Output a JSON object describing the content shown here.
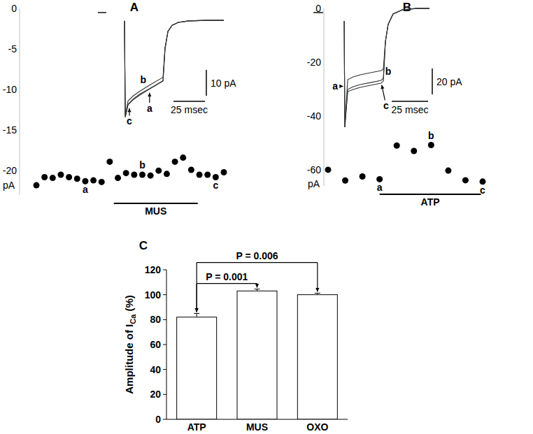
{
  "chart_data": [
    {
      "type": "scatter",
      "title": "A",
      "y_label": "pA",
      "x": [
        0,
        1,
        2,
        3,
        4,
        5,
        6,
        7,
        8,
        9,
        10,
        11,
        12,
        13,
        14,
        15,
        16,
        17,
        18,
        19,
        20,
        21,
        22,
        23
      ],
      "values": [
        -21.8,
        -20.8,
        -20.9,
        -20.5,
        -20.8,
        -21.0,
        -21.3,
        -21.2,
        -21.4,
        -18.9,
        -20.9,
        -20.3,
        -20.5,
        -20.5,
        -20.6,
        -20.0,
        -20.4,
        -18.9,
        -18.4,
        -19.9,
        -20.5,
        -20.5,
        -20.8,
        -20.2
      ],
      "xlim": [
        0,
        23
      ],
      "ylim": [
        -23,
        0
      ],
      "yticks": [
        -20,
        -15,
        -10,
        -5,
        0
      ],
      "tick_labels": "y",
      "grid": false,
      "color": "#000000",
      "marker": "circle",
      "treatment": {
        "label": "MUS",
        "start": 9.5,
        "end": 19.8
      },
      "point_labels": [
        {
          "text": "a",
          "index": 6
        },
        {
          "text": "b",
          "index": 13
        },
        {
          "text": "c",
          "index": 22
        }
      ]
    },
    {
      "type": "line",
      "x": [
        0,
        6.7,
        8,
        21.1,
        21.7,
        23.9,
        27.8,
        33.3,
        40.6,
        50,
        51.7,
        53.3,
        55.6,
        58.9,
        63.9,
        72.2,
        86.1,
        100
      ],
      "xlim": [
        0,
        100
      ],
      "ylim": [
        -44,
        2
      ],
      "tick_labels": false,
      "line_style": "solid",
      "series": [
        {
          "color": "#333333",
          "values": [
            0,
            0,
            null,
            -3.2,
            -40.5,
            -35.7,
            -33.8,
            -31.9,
            -29.7,
            -27,
            -26.5,
            -14,
            -7.3,
            -4.9,
            -3.8,
            -3.2,
            -3.0,
            -3.0
          ]
        },
        {
          "color": "#333333",
          "values": [
            0,
            0,
            null,
            -3.2,
            -40,
            -34.2,
            -32.3,
            -30.4,
            -28.2,
            -25.5,
            -25,
            -13.5,
            -7.3,
            -4.9,
            -3.8,
            -3.2,
            -3.0,
            -3.0
          ]
        },
        {
          "color": "#333333",
          "values": [
            0,
            0,
            null,
            -3.2,
            -40.3,
            -35.5,
            -33.5,
            -31.5,
            -29.5,
            -26.8,
            -26.3,
            -14,
            -7.3,
            -4.9,
            -3.8,
            -3.2,
            -3.0,
            -3.0
          ]
        }
      ],
      "scale_bars": [
        {
          "axis": "y",
          "value": 10,
          "label": "10 pA"
        },
        {
          "axis": "x",
          "value": 25,
          "label": "25 msec"
        }
      ],
      "annotations": [
        {
          "text": "b",
          "x": 36,
          "y": -26,
          "text_x": 36,
          "text_y": -26
        },
        {
          "text": "c",
          "x": 25,
          "y": -37,
          "text_x": 25,
          "text_y": -42
        },
        {
          "text": "a",
          "x": 41,
          "y": -31,
          "text_x": 41,
          "text_y": -37
        }
      ]
    },
    {
      "type": "scatter",
      "title": "B",
      "y_label": "pA",
      "x": [
        0,
        1,
        2,
        3,
        4,
        5,
        6,
        7,
        8,
        9
      ],
      "values": [
        -60.0,
        -64.0,
        -62.5,
        -63.5,
        -51.0,
        -53.0,
        -50.8,
        -60.3,
        -63.9,
        -64.4
      ],
      "xlim": [
        0,
        9
      ],
      "ylim": [
        -66,
        0
      ],
      "yticks": [
        -60,
        -40,
        -20,
        0
      ],
      "tick_labels": "y",
      "grid": false,
      "color": "#000000",
      "marker": "circle",
      "treatment": {
        "label": "ATP",
        "start": 3,
        "end": 8.9
      },
      "point_labels": [
        {
          "text": "a",
          "index": 3
        },
        {
          "text": "b",
          "index": 6
        },
        {
          "text": "c",
          "index": 9
        }
      ]
    },
    {
      "type": "line",
      "x": [
        0,
        6.7,
        10.6,
        21.2,
        21.6,
        23.6,
        27.4,
        32.2,
        39.4,
        46.6,
        48.1,
        49.5,
        51.4,
        54.8,
        61.1,
        70.7,
        79.8
      ],
      "xlim": [
        0,
        80
      ],
      "ylim": [
        -90,
        4
      ],
      "tick_labels": false,
      "line_style": "solid",
      "series": [
        {
          "color": "#333333",
          "values": [
            0,
            0,
            null,
            -6.5,
            -88.6,
            -59.5,
            -57.3,
            -55.7,
            -54.1,
            -52.4,
            -50.8,
            -22.7,
            -9.2,
            -1.1,
            2.2,
            3.2,
            3.2
          ]
        },
        {
          "color": "#333333",
          "values": [
            0,
            0,
            null,
            -6.5,
            -88.6,
            -51.9,
            -49.7,
            -48.1,
            -46.5,
            -44.9,
            -43.8,
            -22.7,
            -9.2,
            -1.1,
            2.2,
            3.2,
            3.2
          ]
        },
        {
          "color": "#333333",
          "values": [
            0,
            0,
            null,
            -6.5,
            -88.6,
            -61.1,
            -59.5,
            -57.8,
            -56.2,
            -54.6,
            -53.0,
            -22.7,
            -9.2,
            -1.1,
            2.2,
            3.2,
            3.2
          ]
        }
      ],
      "scale_bars": [
        {
          "axis": "y",
          "value": 20,
          "label": "20 pA"
        },
        {
          "axis": "x",
          "value": 25,
          "label": "25 msec"
        }
      ],
      "annotations": [
        {
          "text": "a",
          "x": 20.5,
          "y": -57,
          "text_x": 15,
          "text_y": -57
        },
        {
          "text": "b",
          "x": 51.5,
          "y": -45.5,
          "text_x": 51.5,
          "text_y": -45.5
        },
        {
          "text": "c",
          "x": 47,
          "y": -56,
          "text_x": 50,
          "text_y": -72
        }
      ]
    },
    {
      "type": "bar",
      "title": "C",
      "y_label": "Amplitude of ICa (%)",
      "y_label_subscript": "Ca",
      "categories": [
        "ATP",
        "MUS",
        "OXO"
      ],
      "values": [
        82,
        103,
        100
      ],
      "errors": [
        3,
        1.5,
        1.2
      ],
      "color": "#ffffff",
      "ylim": [
        0,
        120
      ],
      "yticks": [
        0,
        20,
        40,
        60,
        80,
        100,
        120
      ],
      "tick_labels": true,
      "grid": false,
      "comparisons": [
        {
          "from": 0,
          "to": 1,
          "label": "P = 0.001"
        },
        {
          "from": 0,
          "to": 2,
          "label": "P = 0.006"
        }
      ]
    }
  ]
}
